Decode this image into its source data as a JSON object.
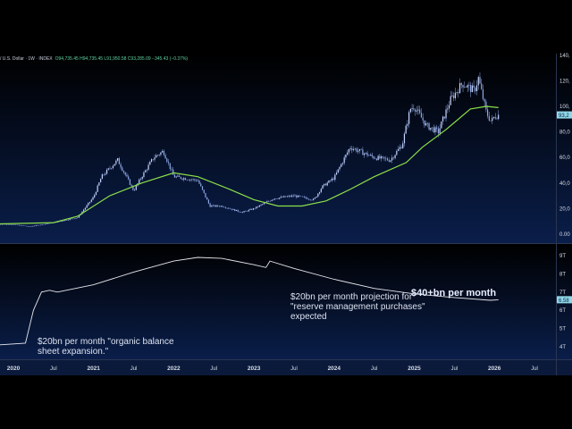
{
  "header": {
    "symbol": "/ U.S. Dollar · 1W · INDEX",
    "ohlc": "O94,735.45 H94,735.45 L91,950.58 C93,285.09 −345.43 (−0.37%)"
  },
  "colors": {
    "background_top": "#000000",
    "background_bottom": "#0a1e4a",
    "candle": "#8fa8e6",
    "ma": "#8be04a",
    "balance_line": "#e6e8ee",
    "price_tag": "#8fd8e6",
    "text": "#d8deea"
  },
  "chart_data": [
    {
      "type": "line",
      "pane": "price",
      "ylim": [
        0,
        140000
      ],
      "y_ticks": [
        "0.00",
        "20,0",
        "40,0",
        "60,0",
        "80,0",
        "100,",
        "120,",
        "140,"
      ],
      "last_value_label": "93,2",
      "series": [
        {
          "kind": "candlestick-close",
          "points": [
            [
              2019.8,
              8
            ],
            [
              2020.0,
              7.5
            ],
            [
              2020.2,
              6
            ],
            [
              2020.5,
              9
            ],
            [
              2020.8,
              13
            ],
            [
              2021.0,
              29
            ],
            [
              2021.1,
              45
            ],
            [
              2021.3,
              58
            ],
            [
              2021.5,
              34
            ],
            [
              2021.6,
              45
            ],
            [
              2021.75,
              60
            ],
            [
              2021.87,
              65
            ],
            [
              2022.0,
              45
            ],
            [
              2022.3,
              42
            ],
            [
              2022.45,
              22
            ],
            [
              2022.6,
              22
            ],
            [
              2022.85,
              17
            ],
            [
              2023.0,
              20
            ],
            [
              2023.25,
              28
            ],
            [
              2023.5,
              30
            ],
            [
              2023.75,
              27
            ],
            [
              2023.85,
              37
            ],
            [
              2024.0,
              44
            ],
            [
              2024.2,
              68
            ],
            [
              2024.5,
              60
            ],
            [
              2024.7,
              58
            ],
            [
              2024.85,
              70
            ],
            [
              2024.95,
              98
            ],
            [
              2025.0,
              100
            ],
            [
              2025.15,
              85
            ],
            [
              2025.3,
              80
            ],
            [
              2025.45,
              105
            ],
            [
              2025.6,
              118
            ],
            [
              2025.75,
              112
            ],
            [
              2025.8,
              122
            ],
            [
              2025.9,
              95
            ],
            [
              2025.96,
              88
            ],
            [
              2026.0,
              92
            ],
            [
              2026.05,
              93.3
            ]
          ]
        },
        {
          "kind": "moving-average",
          "points": [
            [
              2019.8,
              8
            ],
            [
              2020.5,
              9
            ],
            [
              2020.8,
              14
            ],
            [
              2021.2,
              30
            ],
            [
              2021.6,
              40
            ],
            [
              2022.0,
              48
            ],
            [
              2022.3,
              45
            ],
            [
              2022.7,
              35
            ],
            [
              2023.0,
              27
            ],
            [
              2023.3,
              22
            ],
            [
              2023.6,
              22
            ],
            [
              2023.9,
              26
            ],
            [
              2024.2,
              35
            ],
            [
              2024.5,
              45
            ],
            [
              2024.9,
              56
            ],
            [
              2025.1,
              68
            ],
            [
              2025.4,
              82
            ],
            [
              2025.7,
              98
            ],
            [
              2025.9,
              100
            ],
            [
              2026.05,
              99
            ]
          ]
        }
      ]
    },
    {
      "type": "line",
      "pane": "balance",
      "ylim": [
        3.7,
        9.3
      ],
      "y_ticks": [
        "4T",
        "5T",
        "6T",
        "7T",
        "8T",
        "9T"
      ],
      "last_value_label": "6.58",
      "series": [
        {
          "points": [
            [
              2019.8,
              4.1
            ],
            [
              2020.15,
              4.2
            ],
            [
              2020.25,
              6.0
            ],
            [
              2020.35,
              7.0
            ],
            [
              2020.45,
              7.1
            ],
            [
              2020.55,
              7.0
            ],
            [
              2021.0,
              7.4
            ],
            [
              2021.5,
              8.1
            ],
            [
              2022.0,
              8.7
            ],
            [
              2022.3,
              8.9
            ],
            [
              2022.6,
              8.85
            ],
            [
              2023.0,
              8.5
            ],
            [
              2023.15,
              8.35
            ],
            [
              2023.2,
              8.7
            ],
            [
              2023.5,
              8.3
            ],
            [
              2024.0,
              7.7
            ],
            [
              2024.5,
              7.2
            ],
            [
              2025.0,
              6.9
            ],
            [
              2025.5,
              6.7
            ],
            [
              2025.95,
              6.55
            ],
            [
              2026.05,
              6.58
            ]
          ]
        }
      ],
      "annotations": [
        {
          "text": "$20bn per month \"organic balance sheet expansion.\"",
          "lines": [
            "$20bn per month \"organic balance",
            "sheet expansion.\""
          ]
        },
        {
          "text": "$20bn per month projection for \"reserve management purchases\" expected",
          "lines": [
            "$20bn per month projection for",
            "\"reserve management purchases\"",
            "expected"
          ]
        },
        {
          "text": "$40+bn per month",
          "lines": [
            "$40+bn per month"
          ]
        }
      ]
    }
  ],
  "x_axis": {
    "ticks": [
      [
        "2020",
        2020.0
      ],
      [
        "Jul",
        2020.5
      ],
      [
        "2021",
        2021.0
      ],
      [
        "Jul",
        2021.5
      ],
      [
        "2022",
        2022.0
      ],
      [
        "Jul",
        2022.5
      ],
      [
        "2023",
        2023.0
      ],
      [
        "Jul",
        2023.5
      ],
      [
        "2024",
        2024.0
      ],
      [
        "Jul",
        2024.5
      ],
      [
        "2025",
        2025.0
      ],
      [
        "Jul",
        2025.5
      ],
      [
        "2026",
        2026.0
      ],
      [
        "Jul",
        2026.5
      ]
    ]
  }
}
